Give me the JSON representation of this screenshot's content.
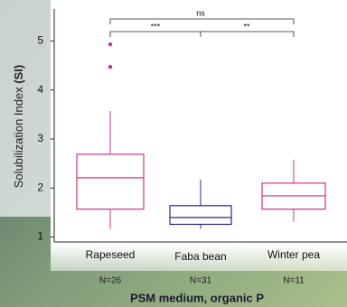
{
  "chart_data": {
    "type": "box",
    "y_label": "Solubilization Index",
    "y_label_unit": "(SI)",
    "x_label": "PSM medium, organic P",
    "categories": [
      "Rapeseed",
      "Faba bean",
      "Winter pea"
    ],
    "n_labels": [
      "N=26",
      "N=31",
      "N=11"
    ],
    "boxes": [
      {
        "color": "#cc3388",
        "whislo": 1.17,
        "q1": 1.57,
        "med": 2.21,
        "q3": 2.69,
        "whishi": 3.57,
        "fliers": [
          4.47,
          4.93
        ]
      },
      {
        "color": "#2a2a8a",
        "whislo": 1.17,
        "q1": 1.26,
        "med": 1.4,
        "q3": 1.64,
        "whishi": 2.17,
        "fliers": []
      },
      {
        "color": "#cc3388",
        "whislo": 1.31,
        "q1": 1.57,
        "med": 1.84,
        "q3": 2.1,
        "whishi": 2.58,
        "fliers": []
      }
    ],
    "annotations": [
      {
        "label": "ns"
      },
      {
        "label": "***"
      },
      {
        "label": "**"
      }
    ],
    "ylim": [
      0.9,
      5.65
    ],
    "yticks": [
      1,
      2,
      3,
      4,
      5
    ]
  }
}
